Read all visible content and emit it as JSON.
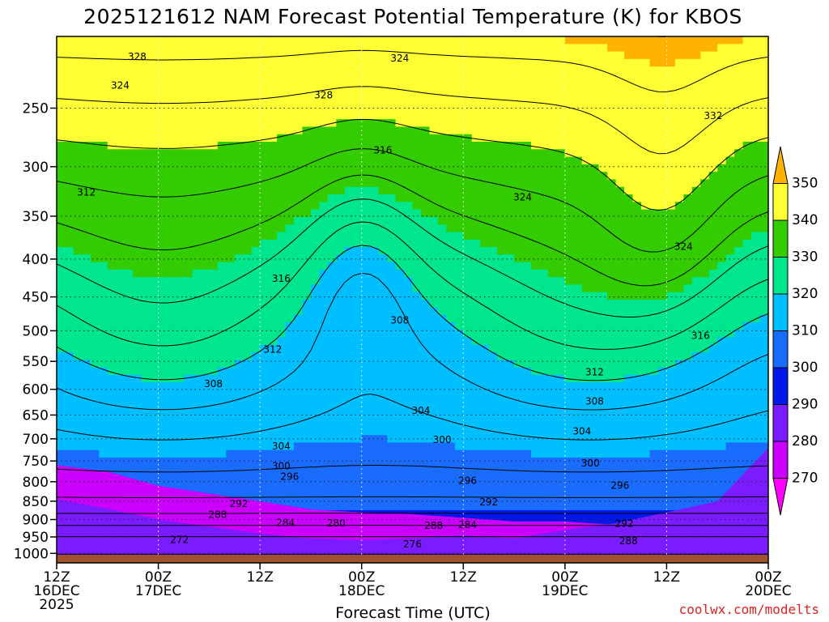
{
  "chart_data": {
    "type": "contour",
    "title": "2025121612 NAM Forecast Potential Temperature (K) for KBOS",
    "xlabel": "Forecast Time (UTC)",
    "ylabel": "",
    "x_ticks": [
      {
        "hour": 0,
        "line1": "12Z",
        "line2": "16DEC",
        "line3": "2025"
      },
      {
        "hour": 12,
        "line1": "00Z",
        "line2": "17DEC",
        "line3": ""
      },
      {
        "hour": 24,
        "line1": "12Z",
        "line2": "",
        "line3": ""
      },
      {
        "hour": 36,
        "line1": "00Z",
        "line2": "18DEC",
        "line3": ""
      },
      {
        "hour": 48,
        "line1": "12Z",
        "line2": "",
        "line3": ""
      },
      {
        "hour": 60,
        "line1": "00Z",
        "line2": "19DEC",
        "line3": ""
      },
      {
        "hour": 72,
        "line1": "12Z",
        "line2": "",
        "line3": ""
      },
      {
        "hour": 84,
        "line1": "00Z",
        "line2": "20DEC",
        "line3": ""
      }
    ],
    "xlim": [
      0,
      84
    ],
    "y_scale": "log",
    "y_ticks": [
      250,
      300,
      350,
      400,
      450,
      500,
      550,
      600,
      650,
      700,
      750,
      800,
      850,
      900,
      950,
      1000
    ],
    "ylim": [
      1000,
      200
    ],
    "colorbar": {
      "levels": [
        270,
        280,
        290,
        300,
        310,
        320,
        330,
        340,
        350
      ],
      "colors": [
        "#ff00ff",
        "#cc00ff",
        "#7a1cff",
        "#0018e8",
        "#1a6cff",
        "#00bfff",
        "#00e68c",
        "#33cc00",
        "#ffff33",
        "#ffb300"
      ]
    },
    "contour_labels": [
      {
        "text": "328",
        "hour": 9.5,
        "p": 213
      },
      {
        "text": "324",
        "hour": 40.5,
        "p": 214
      },
      {
        "text": "324",
        "hour": 7.5,
        "p": 233
      },
      {
        "text": "328",
        "hour": 31.5,
        "p": 240
      },
      {
        "text": "332",
        "hour": 77.5,
        "p": 256
      },
      {
        "text": "316",
        "hour": 38.5,
        "p": 285
      },
      {
        "text": "312",
        "hour": 3.5,
        "p": 325
      },
      {
        "text": "324",
        "hour": 55.0,
        "p": 330
      },
      {
        "text": "324",
        "hour": 74.0,
        "p": 385
      },
      {
        "text": "316",
        "hour": 26.5,
        "p": 425
      },
      {
        "text": "308",
        "hour": 40.5,
        "p": 484
      },
      {
        "text": "316",
        "hour": 76.0,
        "p": 508
      },
      {
        "text": "312",
        "hour": 25.5,
        "p": 530
      },
      {
        "text": "312",
        "hour": 63.5,
        "p": 569
      },
      {
        "text": "308",
        "hour": 18.5,
        "p": 590
      },
      {
        "text": "308",
        "hour": 63.5,
        "p": 623
      },
      {
        "text": "304",
        "hour": 43.0,
        "p": 641
      },
      {
        "text": "304",
        "hour": 62.0,
        "p": 684
      },
      {
        "text": "300",
        "hour": 45.5,
        "p": 702
      },
      {
        "text": "304",
        "hour": 26.5,
        "p": 716
      },
      {
        "text": "300",
        "hour": 26.5,
        "p": 762
      },
      {
        "text": "300",
        "hour": 63.0,
        "p": 755
      },
      {
        "text": "296",
        "hour": 27.5,
        "p": 787
      },
      {
        "text": "296",
        "hour": 48.5,
        "p": 797
      },
      {
        "text": "296",
        "hour": 66.5,
        "p": 810
      },
      {
        "text": "292",
        "hour": 51.0,
        "p": 852
      },
      {
        "text": "292",
        "hour": 21.5,
        "p": 857
      },
      {
        "text": "288",
        "hour": 19.0,
        "p": 886
      },
      {
        "text": "284",
        "hour": 27.0,
        "p": 909
      },
      {
        "text": "280",
        "hour": 33.0,
        "p": 910
      },
      {
        "text": "292",
        "hour": 67.0,
        "p": 911
      },
      {
        "text": "288",
        "hour": 44.5,
        "p": 917
      },
      {
        "text": "284",
        "hour": 48.5,
        "p": 915
      },
      {
        "text": "272",
        "hour": 14.5,
        "p": 959
      },
      {
        "text": "288",
        "hour": 67.5,
        "p": 962
      },
      {
        "text": "276",
        "hour": 42.0,
        "p": 972
      }
    ],
    "fields": [
      {
        "level": 270,
        "color": "#cc00ff",
        "boundary": [
          [
            0,
            760
          ],
          [
            6,
            775
          ],
          [
            12,
            810
          ],
          [
            18,
            830
          ],
          [
            24,
            850
          ],
          [
            30,
            872
          ],
          [
            36,
            880
          ],
          [
            42,
            885
          ],
          [
            48,
            895
          ],
          [
            54,
            905
          ],
          [
            60,
            905
          ],
          [
            66,
            915
          ],
          [
            72,
            930
          ],
          [
            78,
            880
          ],
          [
            84,
            740
          ]
        ]
      },
      {
        "level": 280,
        "color": "#7a1cff",
        "boundary": [
          [
            0,
            845
          ],
          [
            6,
            870
          ],
          [
            12,
            900
          ],
          [
            18,
            920
          ],
          [
            24,
            940
          ],
          [
            30,
            955
          ],
          [
            36,
            960
          ],
          [
            42,
            955
          ],
          [
            48,
            945
          ],
          [
            54,
            955
          ],
          [
            60,
            930
          ],
          [
            66,
            910
          ],
          [
            72,
            880
          ],
          [
            78,
            850
          ],
          [
            84,
            720
          ]
        ]
      }
    ],
    "credit": "coolwx.com/modelts"
  }
}
